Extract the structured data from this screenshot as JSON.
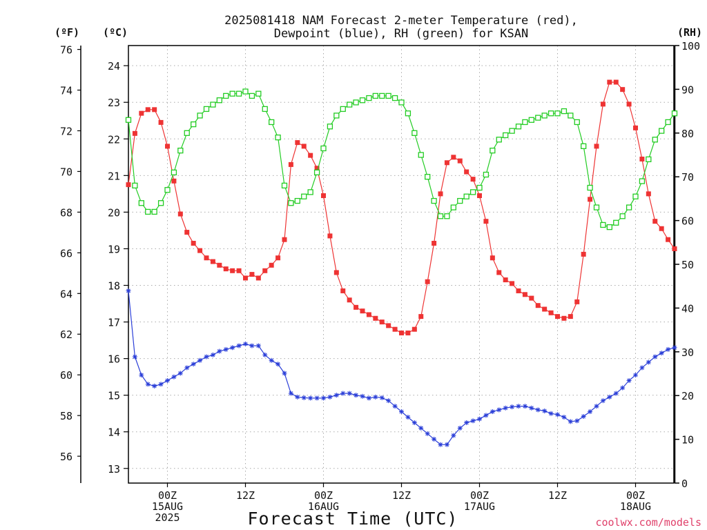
{
  "chart_data": {
    "type": "line",
    "title_lines": [
      "2025081418 NAM Forecast 2-meter Temperature (red),",
      "Dewpoint (blue), RH (green) for KSAN"
    ],
    "xlabel": "Forecast Time (UTC)",
    "credit": "coolwx.com/models",
    "units": {
      "fahrenheit": "(ºF)",
      "celsius": "(ºC)",
      "rh": "(RH)"
    },
    "x_hours_since_start": {
      "min": 0,
      "max": 84
    },
    "x_ticks": [
      {
        "x": 6,
        "lines": [
          "00Z",
          "15AUG",
          "2025"
        ]
      },
      {
        "x": 18,
        "lines": [
          "12Z"
        ]
      },
      {
        "x": 30,
        "lines": [
          "00Z",
          "16AUG"
        ]
      },
      {
        "x": 42,
        "lines": [
          "12Z"
        ]
      },
      {
        "x": 54,
        "lines": [
          "00Z",
          "17AUG"
        ]
      },
      {
        "x": 66,
        "lines": [
          "12Z"
        ]
      },
      {
        "x": 78,
        "lines": [
          "00Z",
          "18AUG"
        ]
      }
    ],
    "y_celsius": {
      "min": 12.6,
      "max": 24.55,
      "ticks": [
        13,
        14,
        15,
        16,
        17,
        18,
        19,
        20,
        21,
        22,
        23,
        24
      ]
    },
    "y_fahrenheit": {
      "min": 54.68,
      "max": 76.19,
      "ticks": [
        56,
        58,
        60,
        62,
        64,
        66,
        68,
        70,
        72,
        74,
        76
      ]
    },
    "y_rh": {
      "min": 0,
      "max": 100,
      "ticks": [
        0,
        10,
        20,
        30,
        40,
        50,
        60,
        70,
        80,
        90,
        100
      ]
    },
    "grid": true,
    "series": [
      {
        "color": "#ee3333",
        "marker": "filled-square",
        "axis": "celsius",
        "values": [
          20.75,
          22.15,
          22.7,
          22.8,
          22.8,
          22.45,
          21.8,
          20.85,
          19.95,
          19.45,
          19.15,
          18.95,
          18.75,
          18.65,
          18.55,
          18.45,
          18.4,
          18.4,
          18.2,
          18.3,
          18.2,
          18.4,
          18.55,
          18.75,
          19.25,
          21.3,
          21.9,
          21.8,
          21.55,
          21.2,
          20.45,
          19.35,
          18.35,
          17.85,
          17.6,
          17.4,
          17.3,
          17.2,
          17.1,
          17.0,
          16.9,
          16.8,
          16.7,
          16.7,
          16.8,
          17.15,
          18.1,
          19.15,
          20.5,
          21.35,
          21.5,
          21.4,
          21.1,
          20.9,
          20.45,
          19.75,
          18.75,
          18.35,
          18.15,
          18.05,
          17.85,
          17.75,
          17.65,
          17.45,
          17.35,
          17.25,
          17.15,
          17.1,
          17.15,
          17.55,
          18.85,
          20.35,
          21.8,
          22.95,
          23.55,
          23.55,
          23.35,
          22.95,
          22.3,
          21.45,
          20.5,
          19.75,
          19.55,
          19.25,
          19.0
        ]
      },
      {
        "color": "#2a3ed8",
        "marker": "star",
        "axis": "celsius",
        "values": [
          17.85,
          16.05,
          15.55,
          15.3,
          15.25,
          15.3,
          15.4,
          15.5,
          15.6,
          15.75,
          15.85,
          15.95,
          16.05,
          16.1,
          16.2,
          16.25,
          16.3,
          16.35,
          16.4,
          16.35,
          16.35,
          16.1,
          15.95,
          15.85,
          15.6,
          15.05,
          14.95,
          14.93,
          14.92,
          14.92,
          14.92,
          14.95,
          15.0,
          15.05,
          15.05,
          15.0,
          14.97,
          14.92,
          14.95,
          14.93,
          14.85,
          14.7,
          14.55,
          14.4,
          14.25,
          14.1,
          13.95,
          13.8,
          13.65,
          13.65,
          13.9,
          14.1,
          14.25,
          14.3,
          14.35,
          14.45,
          14.55,
          14.6,
          14.65,
          14.68,
          14.7,
          14.7,
          14.65,
          14.6,
          14.57,
          14.5,
          14.47,
          14.4,
          14.28,
          14.3,
          14.42,
          14.55,
          14.7,
          14.85,
          14.95,
          15.05,
          15.2,
          15.4,
          15.55,
          15.75,
          15.9,
          16.05,
          16.15,
          16.25,
          16.3
        ]
      },
      {
        "color": "#22cc22",
        "marker": "open-square",
        "axis": "rh",
        "values": [
          83,
          68,
          64,
          62,
          62,
          64,
          67,
          71,
          76,
          80,
          82,
          84,
          85.5,
          86.5,
          87.5,
          88.5,
          89,
          89,
          89.5,
          88.5,
          89,
          85.5,
          82.5,
          79,
          68,
          64,
          64.5,
          65.5,
          66.5,
          71,
          76.5,
          81.5,
          84,
          85.5,
          86.5,
          87,
          87.5,
          88,
          88.5,
          88.5,
          88.5,
          88,
          87,
          84.5,
          80,
          75,
          70,
          64.5,
          61,
          61,
          63,
          64.5,
          65.5,
          66.5,
          67.5,
          70.5,
          76,
          78.5,
          79.5,
          80.5,
          81.5,
          82.5,
          83,
          83.5,
          84,
          84.5,
          84.5,
          85,
          84,
          82.5,
          77,
          67.5,
          63,
          59,
          58.5,
          59.5,
          61,
          63,
          65.5,
          69,
          74,
          78.5,
          80.5,
          82.5,
          84.5
        ]
      }
    ]
  }
}
